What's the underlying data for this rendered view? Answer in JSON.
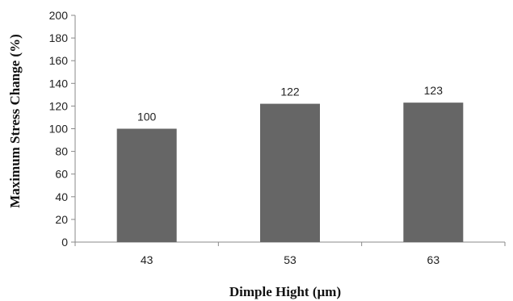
{
  "chart_data": {
    "type": "bar",
    "categories": [
      "43",
      "53",
      "63"
    ],
    "values": [
      100,
      122,
      123
    ],
    "data_labels": [
      "100",
      "122",
      "123"
    ],
    "title": "",
    "xlabel": "Dimple Hight (µm)",
    "ylabel": "Maximum Stress Change (%)",
    "ylim": [
      0,
      200
    ],
    "yticks": [
      "0",
      "20",
      "40",
      "60",
      "80",
      "100",
      "120",
      "140",
      "160",
      "180",
      "200"
    ],
    "grid": false,
    "legend": "none",
    "bar_color": "#666666"
  }
}
